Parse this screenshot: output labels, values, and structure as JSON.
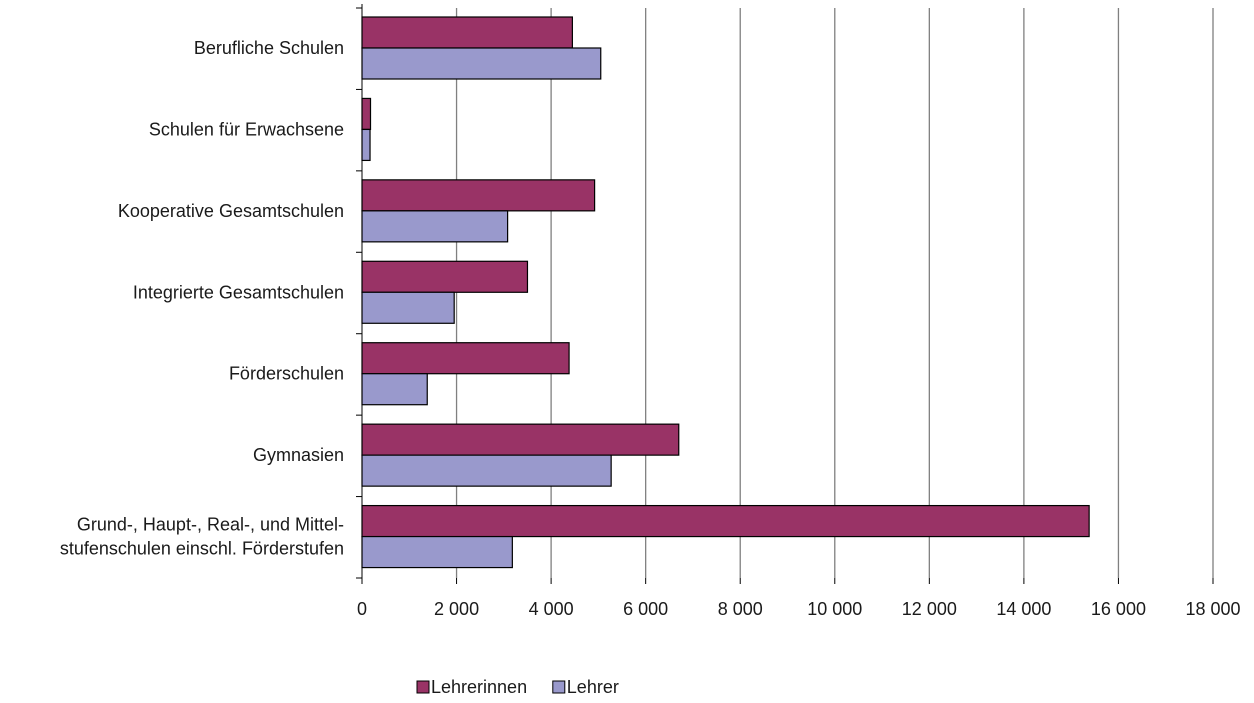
{
  "chart_data": {
    "type": "bar",
    "orientation": "horizontal",
    "categories": [
      [
        "Berufliche Schulen"
      ],
      [
        "Schulen für Erwachsene"
      ],
      [
        "Kooperative Gesamtschulen"
      ],
      [
        "Integrierte Gesamtschulen"
      ],
      [
        "Förderschulen"
      ],
      [
        "Gymnasien"
      ],
      [
        "Grund-, Haupt-, Real-, und Mittel-",
        "stufenschulen einschl. Förderstufen"
      ]
    ],
    "series": [
      {
        "name": "Lehrerinnen",
        "color": "#993366",
        "values": [
          4450,
          180,
          4920,
          3500,
          4380,
          6700,
          15380
        ]
      },
      {
        "name": "Lehrer",
        "color": "#9999cc",
        "values": [
          5050,
          170,
          3080,
          1950,
          1380,
          5270,
          3180
        ]
      }
    ],
    "xlim": [
      0,
      18000
    ],
    "xticks": [
      0,
      2000,
      4000,
      6000,
      8000,
      10000,
      12000,
      14000,
      16000,
      18000
    ],
    "xtick_labels": [
      "0",
      "2 000",
      "4 000",
      "6 000",
      "8 000",
      "10 000",
      "12 000",
      "14 000",
      "16 000",
      "18 000"
    ],
    "grid": true,
    "legend_position": "bottom-center"
  }
}
